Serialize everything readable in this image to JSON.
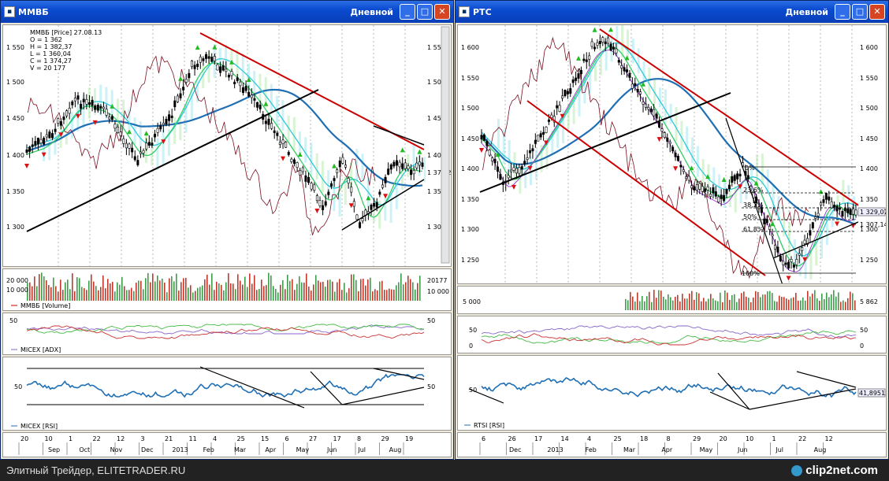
{
  "left_window": {
    "title": "ММВБ",
    "period": "Дневной",
    "info": [
      "ММВБ [Price] 27.08.13",
      "O = 1 362",
      "H = 1 382,37",
      "L = 1 360,04",
      "C = 1 374,27",
      "V = 20 177"
    ],
    "price_ticks": [
      "1 550",
      "1 500",
      "1 450",
      "1 400",
      "1 350",
      "1 300"
    ],
    "right_price_ticks": [
      "1 550",
      "1 500",
      "1 450",
      "1 400",
      "1 350",
      "1 300"
    ],
    "current_price": "1 374,27",
    "volume_ticks": [
      "20 000",
      "10 000"
    ],
    "volume_right": [
      "20177",
      "10 000"
    ],
    "volume_label": "ММВБ [Volume]",
    "adx_tick": "50",
    "adx_label": "MICEX [ADX]",
    "rsi_tick": "50",
    "rsi_label": "MICEX [RSI]",
    "days": [
      "20",
      "10",
      "1",
      "22",
      "12",
      "3",
      "21",
      "11",
      "4",
      "25",
      "15",
      "6",
      "27",
      "17",
      "8",
      "29",
      "19"
    ],
    "months": [
      "Sep",
      "Oct",
      "Nov",
      "Dec",
      "2013",
      "Feb",
      "Mar",
      "Apr",
      "May",
      "Jun",
      "Jul",
      "Aug"
    ]
  },
  "right_window": {
    "title": "РТС",
    "period": "Дневной",
    "price_ticks": [
      "1 600",
      "1 550",
      "1 500",
      "1 450",
      "1 400",
      "1 350",
      "1 300",
      "1 250"
    ],
    "right_price_ticks": [
      "1 600",
      "1 550",
      "1 500",
      "1 450",
      "1 400",
      "1 350",
      "1 300",
      "1 250"
    ],
    "current_price": "1 329,07",
    "second_price": "1 307,14",
    "fib_labels": [
      "0%",
      "23,6%",
      "38,2%",
      "50%",
      "61,8%",
      "100%"
    ],
    "volume_ticks": [
      "5 000"
    ],
    "volume_right": "5 862",
    "adx_ticks": [
      "50",
      "0"
    ],
    "adx_right": [
      "50",
      "0"
    ],
    "rsi_tick": "50",
    "rsi_value": "41,895154",
    "rsi_label": "RTSI [RSI]",
    "days": [
      "6",
      "26",
      "17",
      "14",
      "4",
      "25",
      "18",
      "8",
      "29",
      "20",
      "10",
      "1",
      "22",
      "12"
    ],
    "months": [
      "Dec",
      "2013",
      "Feb",
      "Mar",
      "Apr",
      "May",
      "Jun",
      "Jul",
      "Aug"
    ]
  },
  "footer": {
    "site": "Элитный Трейдер, ELITETRADER.RU",
    "brand": "clip2net.com"
  },
  "colors": {
    "titlebar": "#0a4bd0",
    "trend_red": "#cc0000",
    "trend_black": "#000000",
    "ma_blue": "#1f6fb5",
    "cloud": "#7fd7e8",
    "up_marker": "#22bb22",
    "down_marker": "#dd1111"
  }
}
